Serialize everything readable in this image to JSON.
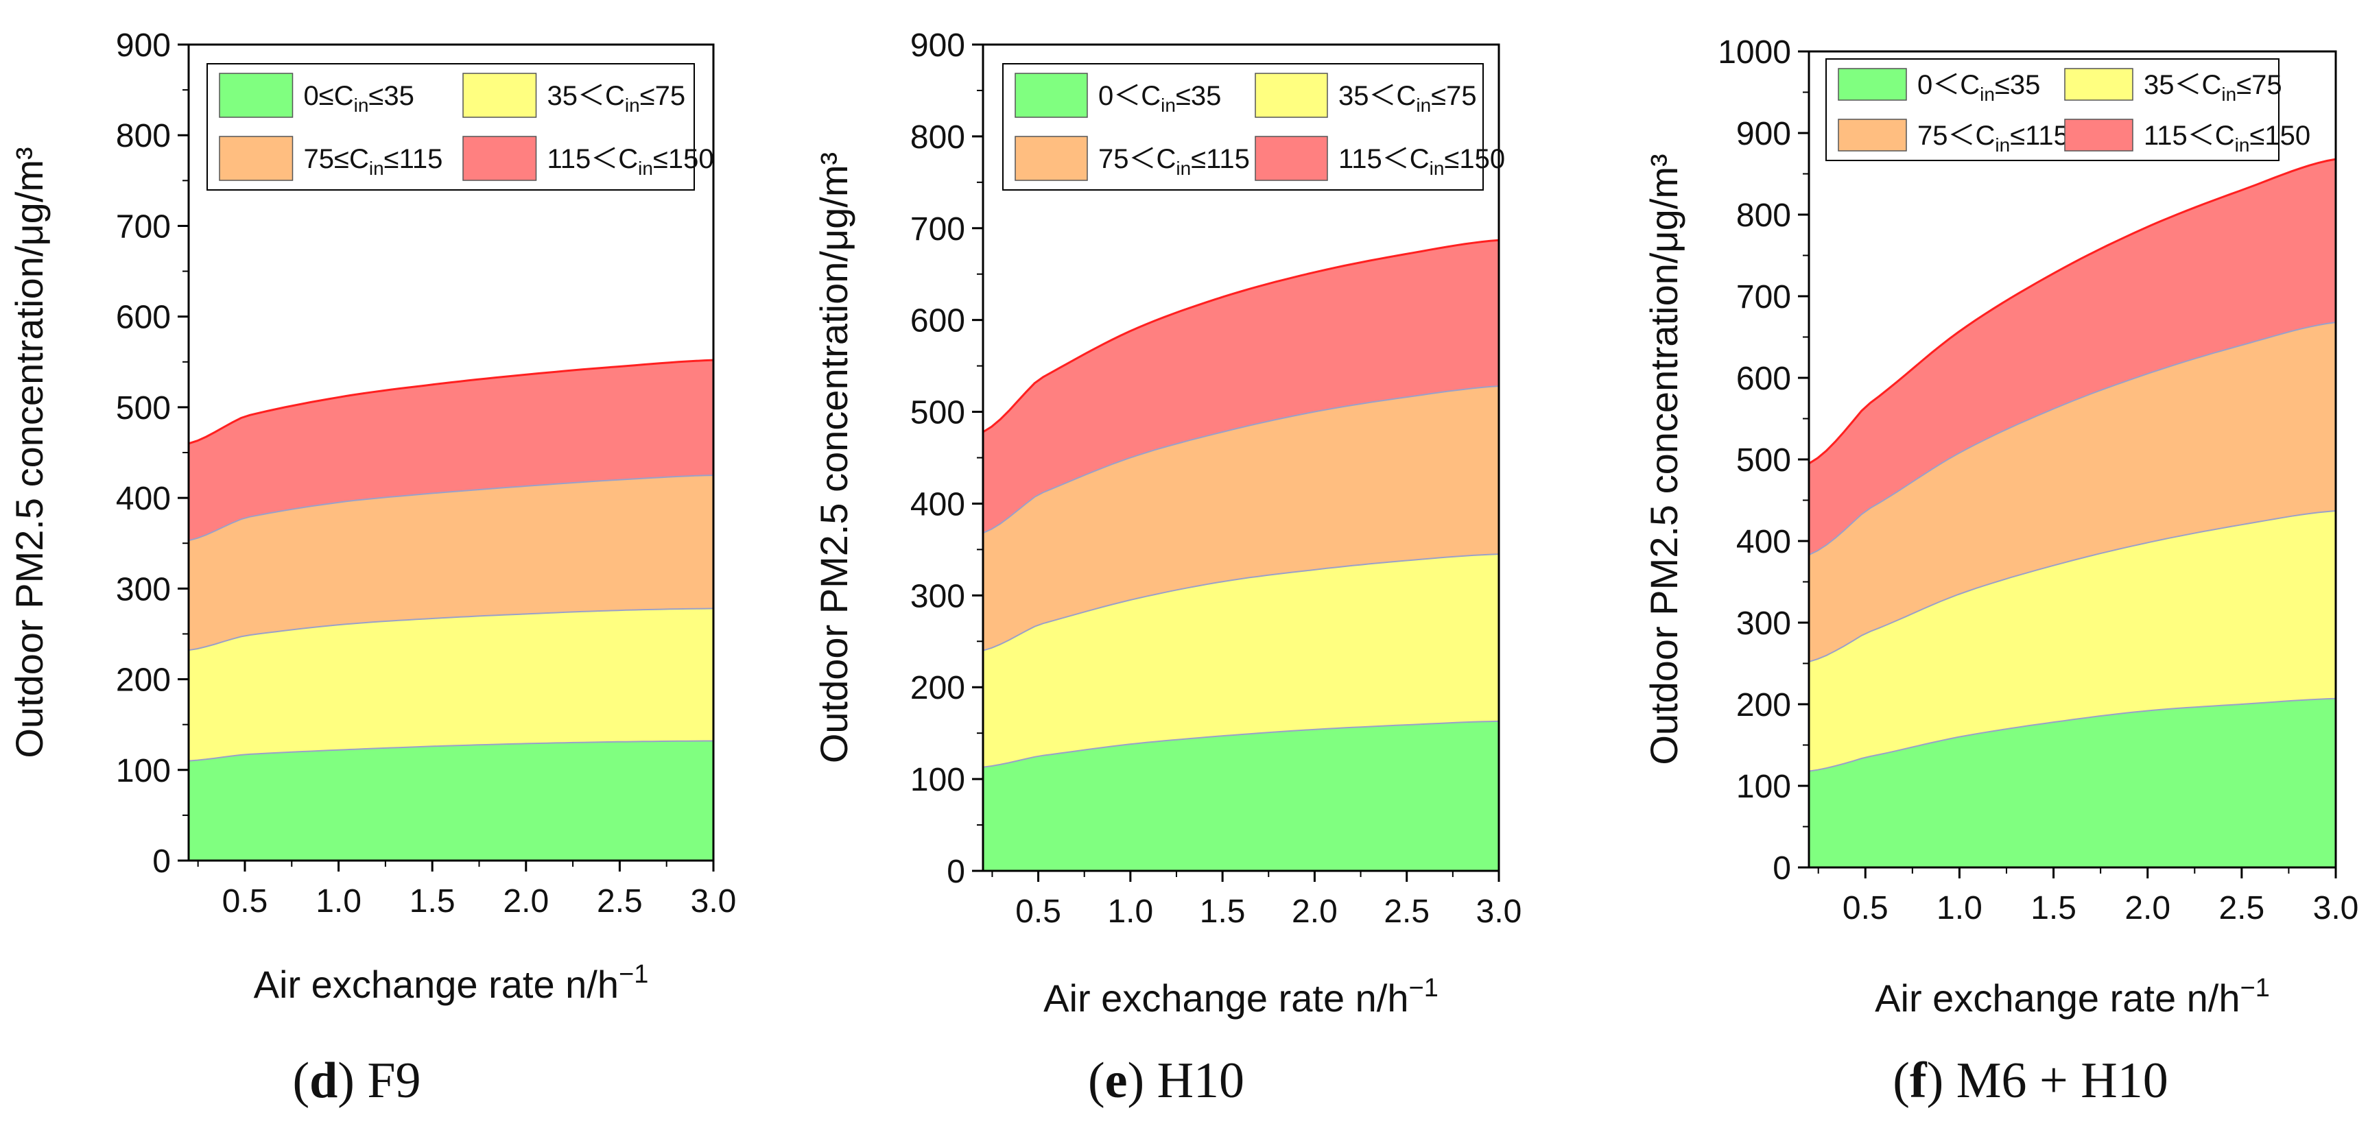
{
  "colors": {
    "green": "#80ff80",
    "yellow": "#ffff80",
    "orange": "#ffbe80",
    "red": "#ff8080",
    "boundary": "#ff2020",
    "seam": "#9aa0c8"
  },
  "chart_data": [
    {
      "type": "area",
      "stacked": true,
      "caption_letter": "d",
      "caption_text": "F9",
      "xlabel": "Air exchange rate n/h",
      "xlabel_sup": "−1",
      "ylabel": "Outdoor PM2.5 concentration/μg/m³",
      "xlim": [
        0.2,
        3.0
      ],
      "ylim": [
        0,
        900
      ],
      "xticks": [
        0.5,
        1.0,
        1.5,
        2.0,
        2.5,
        3.0
      ],
      "xtick_labels": [
        "0.5",
        "1.0",
        "1.5",
        "2.0",
        "2.5",
        "3.0"
      ],
      "yticks": [
        0,
        100,
        200,
        300,
        400,
        500,
        600,
        700,
        800,
        900
      ],
      "ytick_labels": [
        "0",
        "100",
        "200",
        "300",
        "400",
        "500",
        "600",
        "700",
        "800",
        "900"
      ],
      "legend_position": "top-left",
      "x": [
        0.2,
        0.5,
        1.0,
        1.5,
        2.0,
        2.5,
        3.0
      ],
      "series": [
        {
          "name": "0≤Cin≤35",
          "legend": {
            "pre": "0≤C",
            "sub": "in",
            "post": "≤35"
          },
          "color_key": "green",
          "values": [
            110,
            117,
            122,
            126,
            129,
            131,
            132
          ]
        },
        {
          "name": "35<Cin≤75",
          "legend": {
            "pre": "35＜C",
            "sub": "in",
            "post": "≤75"
          },
          "color_key": "yellow",
          "values": [
            232,
            248,
            260,
            267,
            272,
            276,
            278
          ]
        },
        {
          "name": "75≤Cin≤115",
          "legend": {
            "pre": "75≤C",
            "sub": "in",
            "post": "≤115"
          },
          "color_key": "orange",
          "values": [
            353,
            378,
            395,
            405,
            413,
            420,
            425
          ]
        },
        {
          "name": "115<Cin≤150",
          "legend": {
            "pre": "115＜C",
            "sub": "in",
            "post": "≤150"
          },
          "color_key": "red",
          "values": [
            460,
            490,
            511,
            525,
            536,
            545,
            552
          ]
        }
      ]
    },
    {
      "type": "area",
      "stacked": true,
      "caption_letter": "e",
      "caption_text": "H10",
      "xlabel": "Air exchange rate n/h",
      "xlabel_sup": "−1",
      "ylabel": "Outdoor PM2.5 concentration/μg/m³",
      "xlim": [
        0.2,
        3.0
      ],
      "ylim": [
        0,
        900
      ],
      "xticks": [
        0.5,
        1.0,
        1.5,
        2.0,
        2.5,
        3.0
      ],
      "xtick_labels": [
        "0.5",
        "1.0",
        "1.5",
        "2.0",
        "2.5",
        "3.0"
      ],
      "yticks": [
        0,
        100,
        200,
        300,
        400,
        500,
        600,
        700,
        800,
        900
      ],
      "ytick_labels": [
        "0",
        "100",
        "200",
        "300",
        "400",
        "500",
        "600",
        "700",
        "800",
        "900"
      ],
      "legend_position": "top-left",
      "x": [
        0.2,
        0.5,
        1.0,
        1.5,
        2.0,
        2.5,
        3.0
      ],
      "series": [
        {
          "name": "0<Cin≤35",
          "legend": {
            "pre": "0＜C",
            "sub": "in",
            "post": "≤35"
          },
          "color_key": "green",
          "values": [
            113,
            125,
            138,
            147,
            154,
            159,
            163
          ]
        },
        {
          "name": "35<Cin≤75",
          "legend": {
            "pre": "35＜C",
            "sub": "in",
            "post": "≤75"
          },
          "color_key": "yellow",
          "values": [
            240,
            268,
            295,
            315,
            328,
            338,
            345
          ]
        },
        {
          "name": "75<Cin≤115",
          "legend": {
            "pre": "75＜C",
            "sub": "in",
            "post": "≤115"
          },
          "color_key": "orange",
          "values": [
            368,
            410,
            450,
            478,
            500,
            516,
            528
          ]
        },
        {
          "name": "115<Cin≤150",
          "legend": {
            "pre": "115＜C",
            "sub": "in",
            "post": "≤150"
          },
          "color_key": "red",
          "values": [
            478,
            535,
            588,
            625,
            652,
            672,
            687
          ]
        }
      ]
    },
    {
      "type": "area",
      "stacked": true,
      "caption_letter": "f",
      "caption_text": "M6 + H10",
      "xlabel": "Air exchange rate n/h",
      "xlabel_sup": "−1",
      "ylabel": "Outdoor PM2.5 concentration/μg/m³",
      "xlim": [
        0.2,
        3.0
      ],
      "ylim": [
        0,
        1000
      ],
      "xticks": [
        0.5,
        1.0,
        1.5,
        2.0,
        2.5,
        3.0
      ],
      "xtick_labels": [
        "0.5",
        "1.0",
        "1.5",
        "2.0",
        "2.5",
        "3.0"
      ],
      "yticks": [
        0,
        100,
        200,
        300,
        400,
        500,
        600,
        700,
        800,
        900,
        1000
      ],
      "ytick_labels": [
        "0",
        "100",
        "200",
        "300",
        "400",
        "500",
        "600",
        "700",
        "800",
        "900",
        "1000"
      ],
      "legend_position": "top-left",
      "x": [
        0.2,
        0.5,
        1.0,
        1.5,
        2.0,
        2.5,
        3.0
      ],
      "series": [
        {
          "name": "0<Cin≤35",
          "legend": {
            "pre": "0＜C",
            "sub": "in",
            "post": "≤35"
          },
          "color_key": "green",
          "values": [
            118,
            135,
            160,
            178,
            192,
            200,
            207
          ]
        },
        {
          "name": "35<Cin≤75",
          "legend": {
            "pre": "35＜C",
            "sub": "in",
            "post": "≤75"
          },
          "color_key": "yellow",
          "values": [
            252,
            287,
            335,
            370,
            398,
            420,
            437
          ]
        },
        {
          "name": "75<Cin≤115",
          "legend": {
            "pre": "75＜C",
            "sub": "in",
            "post": "≤115"
          },
          "color_key": "orange",
          "values": [
            383,
            437,
            508,
            562,
            605,
            640,
            668
          ]
        },
        {
          "name": "115<Cin≤150",
          "legend": {
            "pre": "115＜C",
            "sub": "in",
            "post": "≤150"
          },
          "color_key": "red",
          "values": [
            495,
            565,
            657,
            728,
            785,
            830,
            868
          ]
        }
      ]
    }
  ]
}
